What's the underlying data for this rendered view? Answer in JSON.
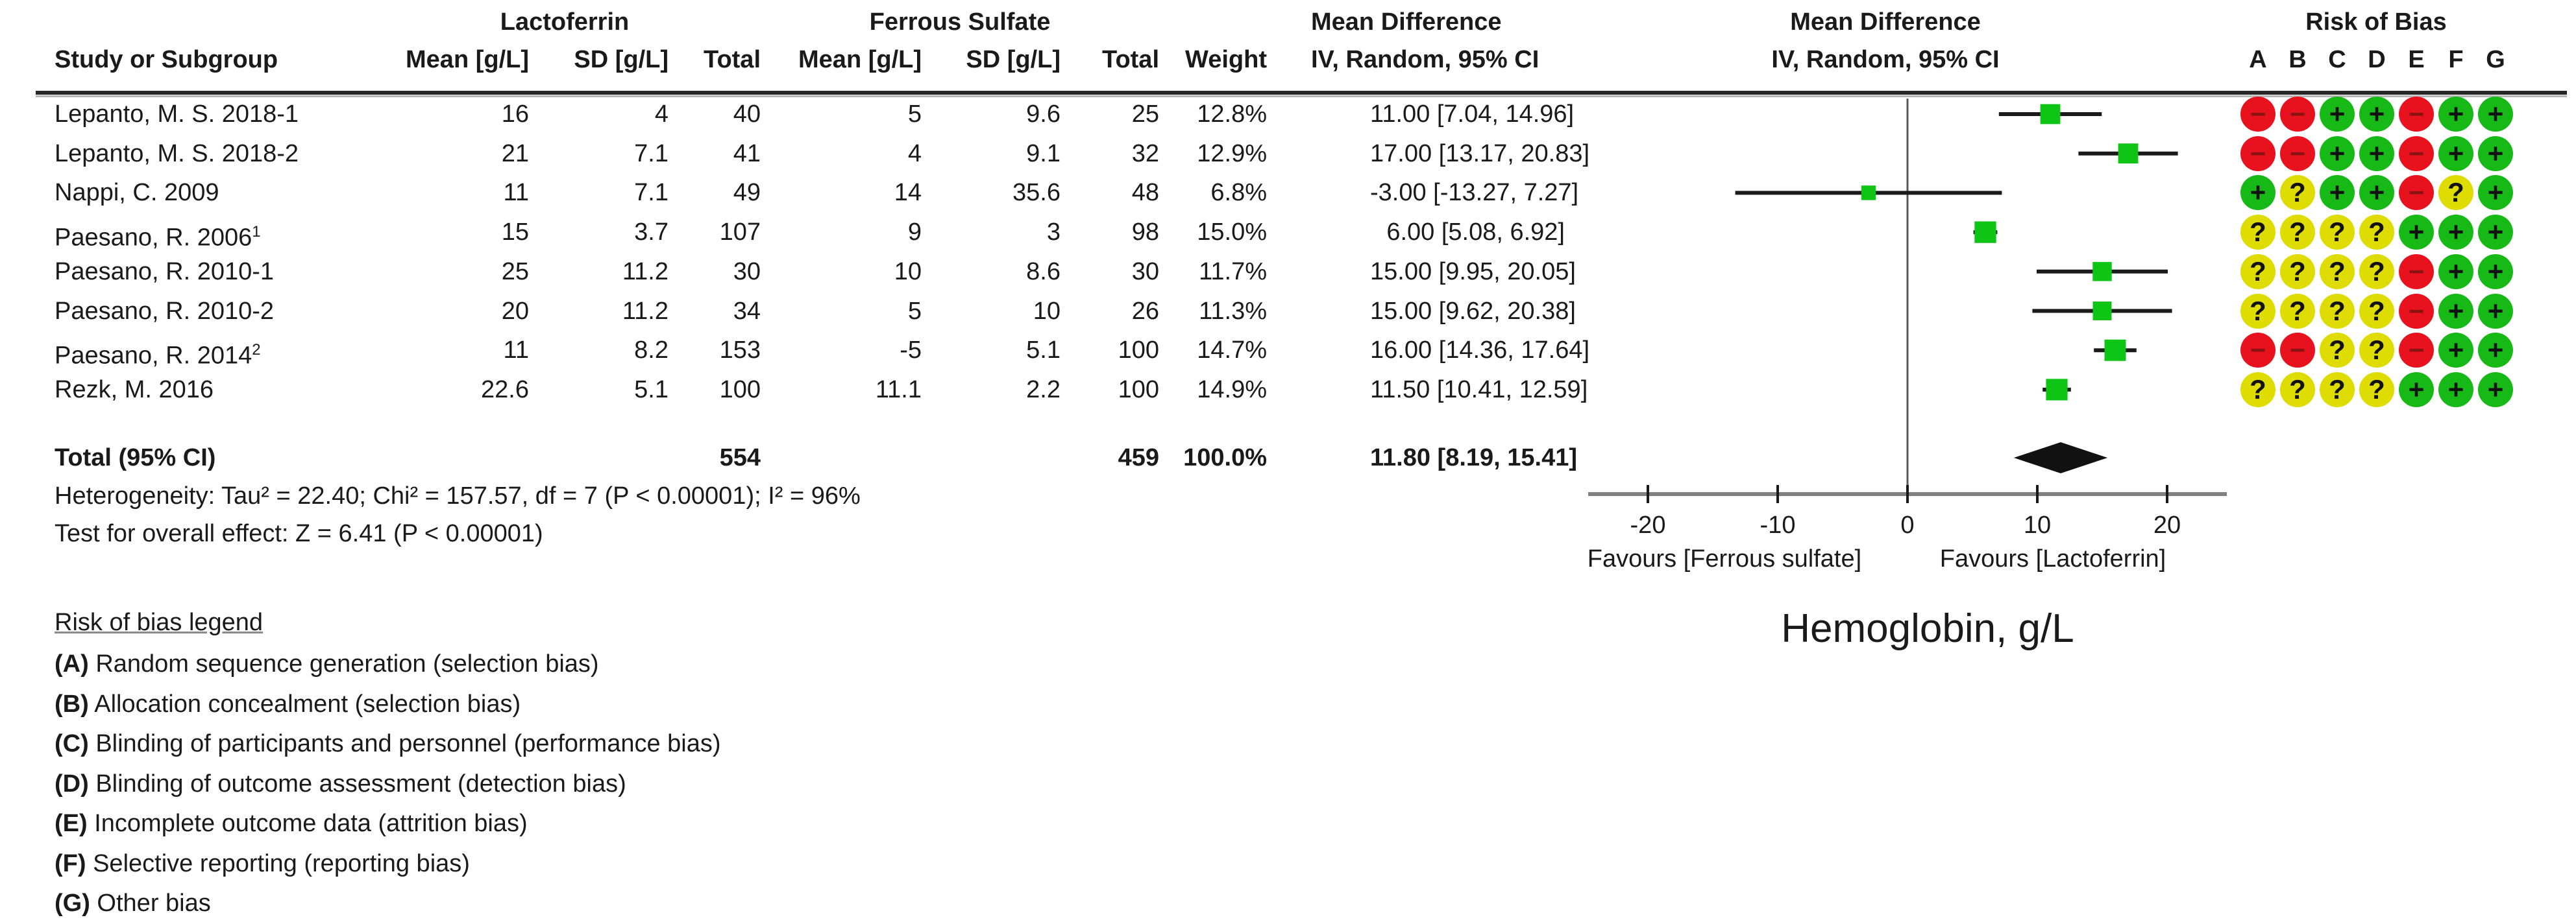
{
  "header": {
    "study": "Study or Subgroup",
    "group1": "Lactoferrin",
    "group2": "Ferrous Sulfate",
    "mean1": "Mean [g/L]",
    "sd1": "SD [g/L]",
    "total1": "Total",
    "mean2": "Mean [g/L]",
    "sd2": "SD [g/L]",
    "total2": "Total",
    "weight": "Weight",
    "md_line1": "Mean Difference",
    "md_line2": "IV, Random, 95% CI",
    "plot_line1": "Mean Difference",
    "plot_line2": "IV, Random, 95% CI",
    "rob": "Risk of Bias"
  },
  "chart_data": {
    "type": "forest",
    "outcome_label": "Hemoglobin, g/L",
    "effect": "Mean Difference, IV, Random, 95% CI",
    "axis": {
      "ticks": [
        -20,
        -10,
        0,
        10,
        20
      ],
      "min": -24.6,
      "max": 24.6
    },
    "favours_left": "Favours [Ferrous sulfate]",
    "favours_right": "Favours [Lactoferrin]",
    "rob_letters": [
      "A",
      "B",
      "C",
      "D",
      "E",
      "F",
      "G"
    ],
    "studies": [
      {
        "name": "Lepanto, M. S. 2018-1",
        "sup": "",
        "lf_mean": "16",
        "lf_sd": "4",
        "lf_total": "40",
        "fs_mean": "5",
        "fs_sd": "9.6",
        "fs_total": "25",
        "weight": "12.8%",
        "ci_text": "11.00 [7.04, 14.96]",
        "est": 11.0,
        "lo": 7.04,
        "hi": 14.96,
        "rob": [
          "-",
          "-",
          "+",
          "+",
          "-",
          "+",
          "+"
        ]
      },
      {
        "name": "Lepanto, M. S. 2018-2",
        "sup": "",
        "lf_mean": "21",
        "lf_sd": "7.1",
        "lf_total": "41",
        "fs_mean": "4",
        "fs_sd": "9.1",
        "fs_total": "32",
        "weight": "12.9%",
        "ci_text": "17.00 [13.17, 20.83]",
        "est": 17.0,
        "lo": 13.17,
        "hi": 20.83,
        "rob": [
          "-",
          "-",
          "+",
          "+",
          "-",
          "+",
          "+"
        ]
      },
      {
        "name": "Nappi, C. 2009",
        "sup": "",
        "lf_mean": "11",
        "lf_sd": "7.1",
        "lf_total": "49",
        "fs_mean": "14",
        "fs_sd": "35.6",
        "fs_total": "48",
        "weight": "6.8%",
        "ci_text": "-3.00 [-13.27, 7.27]",
        "est": -3.0,
        "lo": -13.27,
        "hi": 7.27,
        "rob": [
          "+",
          "?",
          "+",
          "+",
          "-",
          "?",
          "+"
        ]
      },
      {
        "name": "Paesano, R. 2006",
        "sup": "1",
        "lf_mean": "15",
        "lf_sd": "3.7",
        "lf_total": "107",
        "fs_mean": "9",
        "fs_sd": "3",
        "fs_total": "98",
        "weight": "15.0%",
        "ci_text": "6.00 [5.08, 6.92]",
        "est": 6.0,
        "lo": 5.08,
        "hi": 6.92,
        "rob": [
          "?",
          "?",
          "?",
          "?",
          "+",
          "+",
          "+"
        ]
      },
      {
        "name": "Paesano, R. 2010-1",
        "sup": "",
        "lf_mean": "25",
        "lf_sd": "11.2",
        "lf_total": "30",
        "fs_mean": "10",
        "fs_sd": "8.6",
        "fs_total": "30",
        "weight": "11.7%",
        "ci_text": "15.00 [9.95, 20.05]",
        "est": 15.0,
        "lo": 9.95,
        "hi": 20.05,
        "rob": [
          "?",
          "?",
          "?",
          "?",
          "-",
          "+",
          "+"
        ]
      },
      {
        "name": "Paesano, R. 2010-2",
        "sup": "",
        "lf_mean": "20",
        "lf_sd": "11.2",
        "lf_total": "34",
        "fs_mean": "5",
        "fs_sd": "10",
        "fs_total": "26",
        "weight": "11.3%",
        "ci_text": "15.00 [9.62, 20.38]",
        "est": 15.0,
        "lo": 9.62,
        "hi": 20.38,
        "rob": [
          "?",
          "?",
          "?",
          "?",
          "-",
          "+",
          "+"
        ]
      },
      {
        "name": "Paesano, R. 2014",
        "sup": "2",
        "lf_mean": "11",
        "lf_sd": "8.2",
        "lf_total": "153",
        "fs_mean": "-5",
        "fs_sd": "5.1",
        "fs_total": "100",
        "weight": "14.7%",
        "ci_text": "16.00 [14.36, 17.64]",
        "est": 16.0,
        "lo": 14.36,
        "hi": 17.64,
        "rob": [
          "-",
          "-",
          "?",
          "?",
          "-",
          "+",
          "+"
        ]
      },
      {
        "name": "Rezk, M. 2016",
        "sup": "",
        "lf_mean": "22.6",
        "lf_sd": "5.1",
        "lf_total": "100",
        "fs_mean": "11.1",
        "fs_sd": "2.2",
        "fs_total": "100",
        "weight": "14.9%",
        "ci_text": "11.50 [10.41, 12.59]",
        "est": 11.5,
        "lo": 10.41,
        "hi": 12.59,
        "rob": [
          "?",
          "?",
          "?",
          "?",
          "+",
          "+",
          "+"
        ]
      }
    ],
    "total": {
      "label": "Total (95% CI)",
      "lf_total": "554",
      "fs_total": "459",
      "weight": "100.0%",
      "ci_text": "11.80 [8.19, 15.41]",
      "est": 11.8,
      "lo": 8.19,
      "hi": 15.41
    },
    "heterogeneity": "Heterogeneity: Tau² = 22.40; Chi² = 157.57, df = 7 (P < 0.00001); I² = 96%",
    "overall": "Test for overall effect: Z = 6.41 (P < 0.00001)",
    "colors": {
      "marker": "#0ec414",
      "diamond": "#111111",
      "rob_plus": "#16b916",
      "rob_unclear": "#dedc00",
      "rob_minus": "#e8121f",
      "minus_glyph": "#8b1212",
      "axis": "#808080",
      "ink": "#1a1a1a"
    }
  },
  "rob_legend": {
    "heading": "Risk of bias legend",
    "items": [
      {
        "key": "A",
        "text": "Random sequence generation (selection bias)"
      },
      {
        "key": "B",
        "text": "Allocation concealment (selection bias)"
      },
      {
        "key": "C",
        "text": "Blinding of participants and personnel (performance bias)"
      },
      {
        "key": "D",
        "text": "Blinding of outcome assessment (detection bias)"
      },
      {
        "key": "E",
        "text": "Incomplete outcome data (attrition bias)"
      },
      {
        "key": "F",
        "text": "Selective reporting (reporting bias)"
      },
      {
        "key": "G",
        "text": "Other bias"
      }
    ]
  }
}
